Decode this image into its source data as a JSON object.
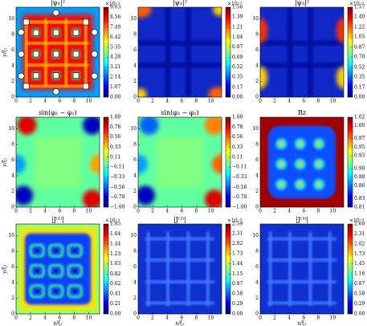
{
  "chart_data": [
    {
      "type": "heatmap",
      "title": "|ψ₁|²",
      "ylabel": "y/ξ₁",
      "xlim": [
        0,
        11.5
      ],
      "ylim": [
        0,
        11.5
      ],
      "xticks": [
        0,
        2,
        4,
        6,
        8,
        10
      ],
      "yticks": [
        0,
        2,
        4,
        6,
        8,
        10
      ],
      "colorbar_scale": "×10⁻¹",
      "clim": [
        0,
        9.63
      ],
      "cticks": [
        {
          "value": 0,
          "label": "0.00"
        },
        1.07,
        2.14,
        3.21,
        4.28,
        5.35,
        6.42,
        7.49,
        8.56,
        9.63
      ]
    },
    {
      "type": "heatmap",
      "title": "|ψ₂|²",
      "xlim": [
        0,
        11.5
      ],
      "ylim": [
        0,
        11.5
      ],
      "xticks": [
        0,
        2,
        4,
        6,
        8,
        10
      ],
      "yticks": [
        0,
        2,
        4,
        6,
        8,
        10
      ],
      "colorbar_scale": "×10⁻¹",
      "clim": [
        0,
        1.56
      ],
      "cticks": [
        {
          "value": 0,
          "label": "0.00"
        },
        0.17,
        0.35,
        0.52,
        0.69,
        0.87,
        1.04,
        1.21,
        1.39,
        1.56
      ]
    },
    {
      "type": "heatmap",
      "title": "|ψ₃|²",
      "xlim": [
        0,
        11.5
      ],
      "ylim": [
        0,
        11.5
      ],
      "xticks": [
        0,
        2,
        4,
        6,
        8,
        10
      ],
      "yticks": [
        0,
        2,
        4,
        6,
        8,
        10
      ],
      "colorbar_scale": "×10⁻¹",
      "clim": [
        0,
        1.57
      ],
      "cticks": [
        {
          "value": 0,
          "label": "0.00"
        },
        0.17,
        0.35,
        0.52,
        {
          "value": 0.7,
          "label": "0.70"
        },
        0.87,
        1.05,
        1.22,
        {
          "value": 1.4,
          "label": "1.40"
        },
        1.57
      ]
    },
    {
      "type": "heatmap",
      "title": "sin(φ₂ − φ₁)",
      "ylabel": "y/ξ₁",
      "xlim": [
        0,
        11.5
      ],
      "ylim": [
        0,
        11.5
      ],
      "xticks": [
        0,
        2,
        4,
        6,
        8,
        10
      ],
      "yticks": [
        0,
        2,
        4,
        6,
        8,
        10
      ],
      "clim": [
        -1,
        1
      ],
      "cticks": [
        {
          "value": -1,
          "label": "−1.00"
        },
        {
          "value": -0.78,
          "label": "−0.78"
        },
        {
          "value": -0.56,
          "label": "−0.56"
        },
        {
          "value": -0.33,
          "label": "−0.33"
        },
        {
          "value": -0.11,
          "label": "−0.11"
        },
        0.11,
        0.33,
        0.56,
        0.78,
        {
          "value": 1,
          "label": "1.00"
        }
      ]
    },
    {
      "type": "heatmap",
      "title": "sin(φ₃ − φ₁)",
      "xlim": [
        0,
        11.5
      ],
      "ylim": [
        0,
        11.5
      ],
      "xticks": [
        0,
        2,
        4,
        6,
        8,
        10
      ],
      "yticks": [
        0,
        2,
        4,
        6,
        8,
        10
      ],
      "clim": [
        -1,
        1
      ],
      "cticks": [
        {
          "value": -1,
          "label": "−1.00"
        },
        {
          "value": -0.78,
          "label": "−0.78"
        },
        {
          "value": -0.56,
          "label": "−0.56"
        },
        {
          "value": -0.33,
          "label": "−0.33"
        },
        {
          "value": -0.11,
          "label": "−0.11"
        },
        0.11,
        0.33,
        0.56,
        0.78,
        {
          "value": 1,
          "label": "1.00"
        }
      ]
    },
    {
      "type": "heatmap",
      "title": "Bz",
      "xlim": [
        0,
        11.5
      ],
      "ylim": [
        0,
        11.5
      ],
      "xticks": [
        0,
        2,
        4,
        6,
        8,
        10
      ],
      "yticks": [
        0,
        2,
        4,
        6,
        8,
        10
      ],
      "clim": [
        0.81,
        1.02
      ],
      "cticks": [
        0.81,
        0.83,
        0.86,
        0.88,
        {
          "value": 0.9,
          "label": "0.90"
        },
        0.93,
        0.95,
        0.97,
        {
          "value": 1,
          "label": "1.00"
        },
        1.02
      ]
    },
    {
      "type": "heatmap",
      "title": "|J⁽¹⁾|",
      "ylabel": "y/ξ₁",
      "xlabel": "x/ξ₁",
      "xlim": [
        0,
        11.5
      ],
      "ylim": [
        0,
        11.5
      ],
      "xticks": [
        0,
        2,
        4,
        6,
        8,
        10
      ],
      "yticks": [
        0,
        2,
        4,
        6,
        8,
        10
      ],
      "colorbar_scale": "×10⁻¹",
      "clim": [
        0,
        1.85
      ],
      "cticks": [
        {
          "value": 0,
          "label": "0.00"
        },
        0.21,
        0.41,
        0.62,
        0.82,
        1.03,
        1.23,
        1.44,
        1.64,
        1.85
      ]
    },
    {
      "type": "heatmap",
      "title": "|J⁽²⁾|",
      "xlabel": "x/ξ₁",
      "xlim": [
        0,
        11.5
      ],
      "ylim": [
        0,
        11.5
      ],
      "xticks": [
        0,
        2,
        4,
        6,
        8,
        10
      ],
      "yticks": [
        0,
        2,
        4,
        6,
        8,
        10
      ],
      "colorbar_scale": "×10⁻³",
      "clim": [
        0,
        2.59
      ],
      "cticks": [
        {
          "value": 0,
          "label": "0.00"
        },
        0.29,
        0.58,
        0.87,
        1.15,
        1.44,
        1.73,
        2.02,
        2.31,
        2.59
      ]
    },
    {
      "type": "heatmap",
      "title": "|J⁽³⁾|",
      "xlabel": "x/ξ₁",
      "xlim": [
        0,
        11.5
      ],
      "ylim": [
        0,
        11.5
      ],
      "xticks": [
        0,
        2,
        4,
        6,
        8,
        10
      ],
      "yticks": [
        0,
        2,
        4,
        6,
        8,
        10
      ],
      "colorbar_scale": "×10⁻³",
      "clim": [
        0,
        2.6
      ],
      "cticks": [
        {
          "value": 0,
          "label": "0.00"
        },
        0.29,
        0.58,
        0.87,
        1.16,
        1.45,
        1.73,
        2.02,
        2.31,
        {
          "value": 2.6,
          "label": "2.60"
        }
      ]
    }
  ]
}
